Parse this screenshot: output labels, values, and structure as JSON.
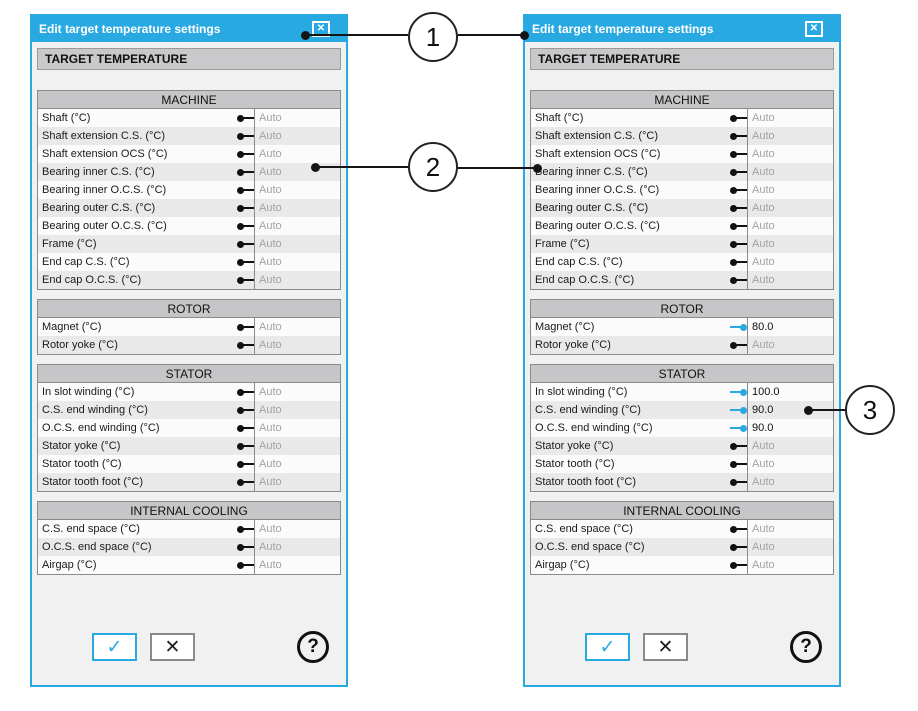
{
  "colors": {
    "accent": "#29A9E1",
    "title_text": "#FFFFFF",
    "row_alt_background": "#E9E9E9",
    "auto_value_text": "#A3A3A3"
  },
  "dialogs": [
    {
      "title": "Edit target temperature settings",
      "close_glyph": "✕",
      "header": "TARGET TEMPERATURE",
      "sections": [
        {
          "title": "MACHINE",
          "rows": [
            {
              "label": "Shaft (°C)",
              "value": "Auto",
              "manual": false
            },
            {
              "label": "Shaft extension C.S. (°C)",
              "value": "Auto",
              "manual": false
            },
            {
              "label": "Shaft extension OCS (°C)",
              "value": "Auto",
              "manual": false
            },
            {
              "label": "Bearing inner C.S. (°C)",
              "value": "Auto",
              "manual": false
            },
            {
              "label": "Bearing inner O.C.S. (°C)",
              "value": "Auto",
              "manual": false
            },
            {
              "label": "Bearing outer C.S. (°C)",
              "value": "Auto",
              "manual": false
            },
            {
              "label": "Bearing outer O.C.S. (°C)",
              "value": "Auto",
              "manual": false
            },
            {
              "label": "Frame (°C)",
              "value": "Auto",
              "manual": false
            },
            {
              "label": "End cap C.S. (°C)",
              "value": "Auto",
              "manual": false
            },
            {
              "label": "End cap O.C.S. (°C)",
              "value": "Auto",
              "manual": false
            }
          ]
        },
        {
          "title": "ROTOR",
          "rows": [
            {
              "label": "Magnet (°C)",
              "value": "Auto",
              "manual": false
            },
            {
              "label": "Rotor yoke (°C)",
              "value": "Auto",
              "manual": false
            }
          ]
        },
        {
          "title": "STATOR",
          "rows": [
            {
              "label": "In slot winding (°C)",
              "value": "Auto",
              "manual": false
            },
            {
              "label": "C.S. end winding (°C)",
              "value": "Auto",
              "manual": false
            },
            {
              "label": "O.C.S. end winding (°C)",
              "value": "Auto",
              "manual": false
            },
            {
              "label": "Stator yoke (°C)",
              "value": "Auto",
              "manual": false
            },
            {
              "label": "Stator tooth (°C)",
              "value": "Auto",
              "manual": false
            },
            {
              "label": "Stator tooth foot (°C)",
              "value": "Auto",
              "manual": false
            }
          ]
        },
        {
          "title": "INTERNAL COOLING",
          "rows": [
            {
              "label": "C.S. end space (°C)",
              "value": "Auto",
              "manual": false
            },
            {
              "label": "O.C.S. end space (°C)",
              "value": "Auto",
              "manual": false
            },
            {
              "label": "Airgap (°C)",
              "value": "Auto",
              "manual": false
            }
          ]
        }
      ],
      "buttons": {
        "ok": "✓",
        "cancel": "✕",
        "help": "?"
      }
    },
    {
      "title": "Edit target temperature settings",
      "close_glyph": "✕",
      "header": "TARGET TEMPERATURE",
      "sections": [
        {
          "title": "MACHINE",
          "rows": [
            {
              "label": "Shaft (°C)",
              "value": "Auto",
              "manual": false
            },
            {
              "label": "Shaft extension C.S. (°C)",
              "value": "Auto",
              "manual": false
            },
            {
              "label": "Shaft extension OCS (°C)",
              "value": "Auto",
              "manual": false
            },
            {
              "label": "Bearing inner C.S. (°C)",
              "value": "Auto",
              "manual": false
            },
            {
              "label": "Bearing inner O.C.S. (°C)",
              "value": "Auto",
              "manual": false
            },
            {
              "label": "Bearing outer C.S. (°C)",
              "value": "Auto",
              "manual": false
            },
            {
              "label": "Bearing outer O.C.S. (°C)",
              "value": "Auto",
              "manual": false
            },
            {
              "label": "Frame (°C)",
              "value": "Auto",
              "manual": false
            },
            {
              "label": "End cap C.S. (°C)",
              "value": "Auto",
              "manual": false
            },
            {
              "label": "End cap O.C.S. (°C)",
              "value": "Auto",
              "manual": false
            }
          ]
        },
        {
          "title": "ROTOR",
          "rows": [
            {
              "label": "Magnet (°C)",
              "value": "80.0",
              "manual": true
            },
            {
              "label": "Rotor yoke (°C)",
              "value": "Auto",
              "manual": false
            }
          ]
        },
        {
          "title": "STATOR",
          "rows": [
            {
              "label": "In slot winding (°C)",
              "value": "100.0",
              "manual": true
            },
            {
              "label": "C.S. end winding (°C)",
              "value": "90.0",
              "manual": true
            },
            {
              "label": "O.C.S. end winding (°C)",
              "value": "90.0",
              "manual": true
            },
            {
              "label": "Stator yoke (°C)",
              "value": "Auto",
              "manual": false
            },
            {
              "label": "Stator tooth (°C)",
              "value": "Auto",
              "manual": false
            },
            {
              "label": "Stator tooth foot (°C)",
              "value": "Auto",
              "manual": false
            }
          ]
        },
        {
          "title": "INTERNAL COOLING",
          "rows": [
            {
              "label": "C.S. end space (°C)",
              "value": "Auto",
              "manual": false
            },
            {
              "label": "O.C.S. end space (°C)",
              "value": "Auto",
              "manual": false
            },
            {
              "label": "Airgap (°C)",
              "value": "Auto",
              "manual": false
            }
          ]
        }
      ],
      "buttons": {
        "ok": "✓",
        "cancel": "✕",
        "help": "?"
      }
    }
  ],
  "callouts": [
    {
      "number": "1"
    },
    {
      "number": "2"
    },
    {
      "number": "3"
    }
  ]
}
